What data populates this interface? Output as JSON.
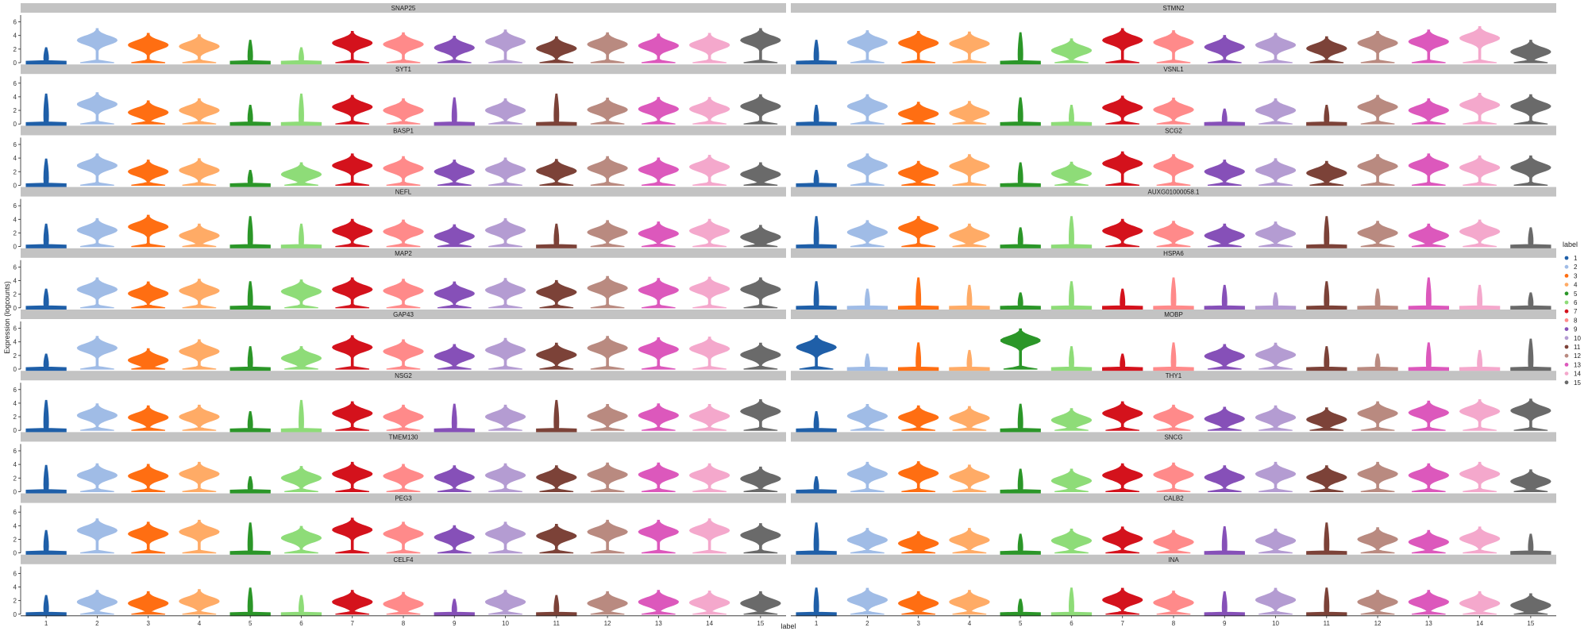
{
  "chart_data": {
    "type": "violin",
    "xlabel": "label",
    "ylabel": "Expression (logcounts)",
    "legend_title": "label",
    "legend_position": "right",
    "categories": [
      "1",
      "2",
      "3",
      "4",
      "5",
      "6",
      "7",
      "8",
      "9",
      "10",
      "11",
      "12",
      "13",
      "14",
      "15"
    ],
    "colors": [
      "#1f5fa8",
      "#a0bce6",
      "#ff6e12",
      "#ffab66",
      "#2b9628",
      "#8edc78",
      "#d4121c",
      "#ff8a8a",
      "#8650b8",
      "#b49cd2",
      "#7c4238",
      "#b98a80",
      "#dc58bc",
      "#f4a8cc",
      "#6a6a6a"
    ],
    "ylim": [
      0,
      7
    ],
    "yticks": [
      0,
      2,
      4,
      6
    ],
    "facet_layout": {
      "rows": 10,
      "cols": 2
    },
    "panels": [
      {
        "gene": "SNAP25",
        "medians": [
          0.2,
          3.3,
          2.6,
          2.4,
          0.1,
          0.3,
          2.9,
          2.7,
          2.2,
          3.1,
          2.1,
          2.7,
          2.5,
          2.6,
          3.3
        ]
      },
      {
        "gene": "STMN2",
        "medians": [
          0.3,
          3.0,
          2.9,
          2.8,
          0.1,
          1.8,
          3.3,
          3.0,
          2.3,
          2.6,
          2.1,
          2.9,
          3.1,
          3.6,
          1.6
        ]
      },
      {
        "gene": "SYT1",
        "medians": [
          0.2,
          2.9,
          1.7,
          2.0,
          0.1,
          0.3,
          2.5,
          2.0,
          0.2,
          2.0,
          0.2,
          2.1,
          2.2,
          2.2,
          2.6
        ]
      },
      {
        "gene": "VSNL1",
        "medians": [
          0.2,
          2.6,
          1.5,
          1.6,
          0.1,
          0.2,
          2.4,
          2.1,
          0.2,
          2.0,
          0.2,
          2.5,
          2.0,
          2.8,
          2.6
        ]
      },
      {
        "gene": "BASP1",
        "medians": [
          0.2,
          2.9,
          2.0,
          2.2,
          0.1,
          1.6,
          2.9,
          2.5,
          2.0,
          2.3,
          2.1,
          2.5,
          2.3,
          2.7,
          1.6
        ]
      },
      {
        "gene": "SCG2",
        "medians": [
          0.3,
          2.9,
          1.8,
          2.8,
          0.1,
          1.7,
          3.2,
          2.8,
          2.0,
          2.2,
          1.8,
          2.8,
          2.9,
          2.6,
          2.6
        ]
      },
      {
        "gene": "NEFL",
        "medians": [
          0.2,
          2.4,
          2.9,
          1.6,
          0.1,
          0.3,
          2.3,
          2.2,
          1.5,
          2.4,
          0.2,
          2.1,
          1.9,
          2.3,
          1.4
        ]
      },
      {
        "gene": "AUXG01000058.1",
        "medians": [
          0.2,
          2.1,
          2.7,
          1.6,
          0.1,
          0.3,
          2.3,
          2.0,
          1.6,
          1.9,
          0.2,
          2.0,
          1.6,
          2.2,
          0.3
        ]
      },
      {
        "gene": "MAP2",
        "medians": [
          0.3,
          2.7,
          2.1,
          2.5,
          0.1,
          2.4,
          2.7,
          2.5,
          2.1,
          2.6,
          2.3,
          2.9,
          2.6,
          2.8,
          2.7
        ]
      },
      {
        "gene": "HSPA6",
        "medians": [
          0.1,
          0.1,
          0.1,
          0.1,
          0.1,
          0.1,
          0.1,
          0.1,
          0.1,
          0.1,
          0.1,
          0.1,
          0.1,
          0.1,
          0.1
        ]
      },
      {
        "gene": "GAP43",
        "medians": [
          0.2,
          3.1,
          1.3,
          2.6,
          0.1,
          1.6,
          3.2,
          2.6,
          1.9,
          2.8,
          2.1,
          3.1,
          2.9,
          3.0,
          2.1
        ]
      },
      {
        "gene": "MOBP",
        "medians": [
          3.2,
          0.2,
          0.1,
          0.1,
          4.2,
          0.2,
          0.1,
          0.2,
          1.9,
          2.1,
          0.2,
          0.2,
          0.1,
          0.2,
          0.2
        ]
      },
      {
        "gene": "NSG2",
        "medians": [
          0.2,
          2.2,
          1.9,
          2.0,
          0.1,
          0.3,
          2.5,
          2.0,
          0.2,
          2.0,
          0.2,
          2.1,
          2.2,
          2.1,
          2.8
        ]
      },
      {
        "gene": "THY1",
        "medians": [
          0.3,
          2.1,
          1.9,
          1.8,
          0.1,
          1.5,
          2.5,
          2.0,
          1.7,
          1.9,
          1.6,
          2.5,
          2.6,
          2.8,
          2.9
        ]
      },
      {
        "gene": "TMEM130",
        "medians": [
          0.2,
          2.4,
          2.3,
          2.6,
          0.1,
          2.0,
          2.6,
          2.3,
          2.1,
          2.4,
          2.1,
          2.5,
          2.5,
          2.4,
          1.9
        ]
      },
      {
        "gene": "SNCG",
        "medians": [
          0.2,
          2.6,
          2.7,
          2.2,
          0.1,
          1.6,
          2.4,
          2.5,
          2.1,
          2.6,
          2.1,
          2.6,
          2.4,
          2.6,
          1.5
        ]
      },
      {
        "gene": "PEG3",
        "medians": [
          0.2,
          3.3,
          2.8,
          3.1,
          0.1,
          2.2,
          3.4,
          2.8,
          2.3,
          2.8,
          2.5,
          3.1,
          3.1,
          3.3,
          2.6
        ]
      },
      {
        "gene": "CALB2",
        "medians": [
          0.2,
          1.9,
          1.4,
          1.9,
          0.1,
          1.8,
          2.1,
          1.6,
          0.2,
          1.8,
          0.2,
          2.0,
          1.6,
          2.1,
          0.3
        ]
      },
      {
        "gene": "CELF4",
        "medians": [
          0.2,
          1.8,
          1.6,
          1.9,
          0.1,
          0.3,
          1.8,
          1.5,
          0.2,
          1.8,
          0.2,
          1.6,
          1.8,
          1.7,
          1.6
        ]
      },
      {
        "gene": "INA",
        "medians": [
          0.2,
          2.1,
          1.6,
          1.8,
          0.1,
          0.4,
          2.1,
          1.7,
          0.2,
          2.1,
          0.2,
          1.8,
          1.8,
          1.6,
          1.3
        ]
      }
    ]
  }
}
